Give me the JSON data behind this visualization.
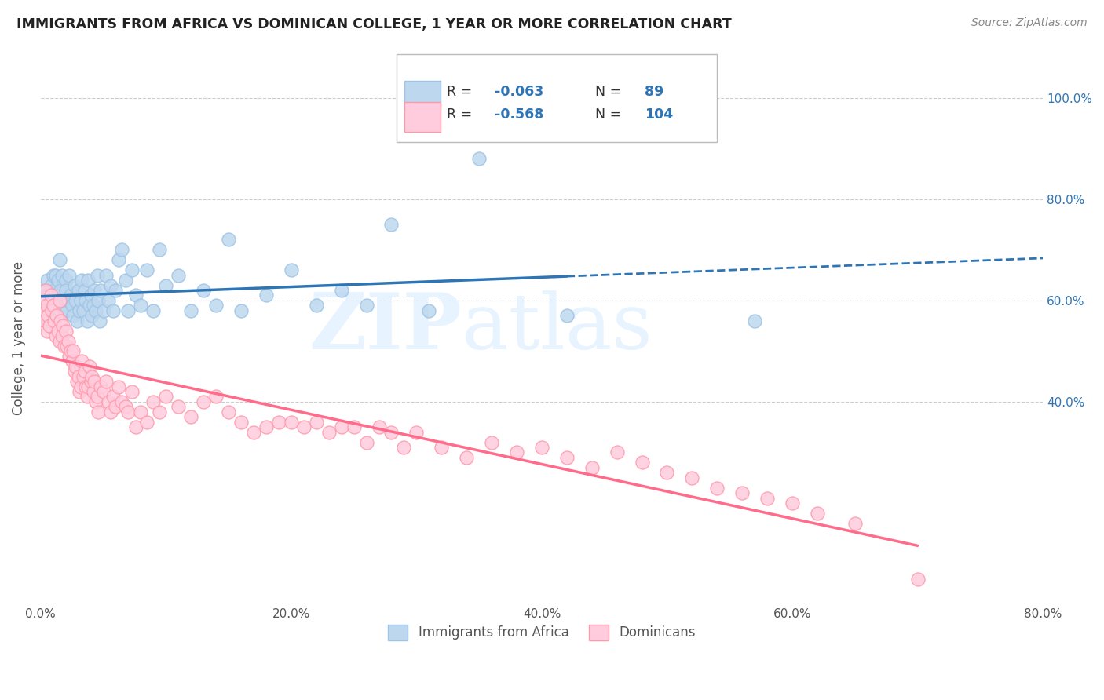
{
  "title": "IMMIGRANTS FROM AFRICA VS DOMINICAN COLLEGE, 1 YEAR OR MORE CORRELATION CHART",
  "source_text": "Source: ZipAtlas.com",
  "ylabel": "College, 1 year or more",
  "xlim": [
    0.0,
    0.8
  ],
  "ylim": [
    0.0,
    1.05
  ],
  "xtick_labels": [
    "0.0%",
    "",
    "20.0%",
    "",
    "40.0%",
    "",
    "60.0%",
    "",
    "80.0%"
  ],
  "xtick_vals": [
    0.0,
    0.1,
    0.2,
    0.3,
    0.4,
    0.5,
    0.6,
    0.7,
    0.8
  ],
  "ytick_vals": [
    0.4,
    0.6,
    0.8,
    1.0
  ],
  "ytick_right_labels": [
    "40.0%",
    "60.0%",
    "80.0%",
    "100.0%"
  ],
  "blue_R": -0.063,
  "blue_N": 89,
  "pink_R": -0.568,
  "pink_N": 104,
  "blue_fill_color": "#BDD7EE",
  "pink_fill_color": "#FFCCDD",
  "blue_edge_color": "#9DC3E6",
  "pink_edge_color": "#FF99AA",
  "blue_line_color": "#2E75B6",
  "pink_line_color": "#FF6B8A",
  "label_color_blue": "#2E75B6",
  "label_color_pink": "#FF6B8A",
  "watermark_zip": "ZIP",
  "watermark_atlas": "atlas",
  "watermark_color": "#DDEEFF",
  "legend_label_blue": "Immigrants from Africa",
  "legend_label_pink": "Dominicans",
  "legend_text_color": "#555555",
  "legend_value_color": "#2E75B6",
  "blue_scatter_x": [
    0.002,
    0.003,
    0.004,
    0.005,
    0.005,
    0.006,
    0.007,
    0.008,
    0.008,
    0.009,
    0.01,
    0.01,
    0.011,
    0.012,
    0.012,
    0.013,
    0.013,
    0.014,
    0.014,
    0.015,
    0.015,
    0.016,
    0.016,
    0.017,
    0.018,
    0.019,
    0.02,
    0.02,
    0.021,
    0.022,
    0.023,
    0.024,
    0.025,
    0.026,
    0.027,
    0.028,
    0.029,
    0.03,
    0.031,
    0.032,
    0.033,
    0.034,
    0.035,
    0.036,
    0.037,
    0.038,
    0.039,
    0.04,
    0.041,
    0.042,
    0.043,
    0.044,
    0.045,
    0.046,
    0.047,
    0.048,
    0.05,
    0.052,
    0.054,
    0.056,
    0.058,
    0.06,
    0.062,
    0.065,
    0.068,
    0.07,
    0.073,
    0.076,
    0.08,
    0.085,
    0.09,
    0.095,
    0.1,
    0.11,
    0.12,
    0.13,
    0.14,
    0.15,
    0.16,
    0.18,
    0.2,
    0.22,
    0.24,
    0.26,
    0.28,
    0.31,
    0.35,
    0.42,
    0.57
  ],
  "blue_scatter_y": [
    0.62,
    0.6,
    0.58,
    0.64,
    0.56,
    0.61,
    0.59,
    0.57,
    0.63,
    0.6,
    0.65,
    0.58,
    0.62,
    0.59,
    0.65,
    0.61,
    0.57,
    0.64,
    0.6,
    0.68,
    0.56,
    0.62,
    0.59,
    0.65,
    0.6,
    0.58,
    0.64,
    0.62,
    0.58,
    0.6,
    0.65,
    0.61,
    0.59,
    0.57,
    0.63,
    0.6,
    0.56,
    0.62,
    0.58,
    0.6,
    0.64,
    0.58,
    0.62,
    0.6,
    0.56,
    0.64,
    0.59,
    0.61,
    0.57,
    0.59,
    0.62,
    0.58,
    0.65,
    0.6,
    0.56,
    0.62,
    0.58,
    0.65,
    0.6,
    0.63,
    0.58,
    0.62,
    0.68,
    0.7,
    0.64,
    0.58,
    0.66,
    0.61,
    0.59,
    0.66,
    0.58,
    0.7,
    0.63,
    0.65,
    0.58,
    0.62,
    0.59,
    0.72,
    0.58,
    0.61,
    0.66,
    0.59,
    0.62,
    0.59,
    0.75,
    0.58,
    0.88,
    0.57,
    0.56
  ],
  "pink_scatter_x": [
    0.001,
    0.002,
    0.003,
    0.004,
    0.005,
    0.005,
    0.006,
    0.007,
    0.008,
    0.009,
    0.01,
    0.011,
    0.012,
    0.013,
    0.014,
    0.015,
    0.015,
    0.016,
    0.017,
    0.018,
    0.019,
    0.02,
    0.021,
    0.022,
    0.023,
    0.024,
    0.025,
    0.026,
    0.027,
    0.028,
    0.029,
    0.03,
    0.031,
    0.032,
    0.033,
    0.034,
    0.035,
    0.036,
    0.037,
    0.038,
    0.039,
    0.04,
    0.041,
    0.042,
    0.043,
    0.044,
    0.045,
    0.046,
    0.048,
    0.05,
    0.052,
    0.054,
    0.056,
    0.058,
    0.06,
    0.062,
    0.065,
    0.068,
    0.07,
    0.073,
    0.076,
    0.08,
    0.085,
    0.09,
    0.095,
    0.1,
    0.11,
    0.12,
    0.13,
    0.14,
    0.15,
    0.16,
    0.17,
    0.18,
    0.19,
    0.2,
    0.21,
    0.22,
    0.23,
    0.24,
    0.25,
    0.26,
    0.27,
    0.28,
    0.29,
    0.3,
    0.32,
    0.34,
    0.36,
    0.38,
    0.4,
    0.42,
    0.44,
    0.46,
    0.48,
    0.5,
    0.52,
    0.54,
    0.56,
    0.58,
    0.6,
    0.62,
    0.65,
    0.7
  ],
  "pink_scatter_y": [
    0.6,
    0.58,
    0.56,
    0.62,
    0.54,
    0.59,
    0.57,
    0.55,
    0.61,
    0.58,
    0.59,
    0.56,
    0.53,
    0.57,
    0.54,
    0.6,
    0.52,
    0.56,
    0.53,
    0.55,
    0.51,
    0.54,
    0.51,
    0.52,
    0.49,
    0.5,
    0.48,
    0.5,
    0.46,
    0.47,
    0.44,
    0.45,
    0.42,
    0.43,
    0.48,
    0.45,
    0.46,
    0.43,
    0.41,
    0.43,
    0.47,
    0.44,
    0.45,
    0.42,
    0.44,
    0.4,
    0.41,
    0.38,
    0.43,
    0.42,
    0.44,
    0.4,
    0.38,
    0.41,
    0.39,
    0.43,
    0.4,
    0.39,
    0.38,
    0.42,
    0.35,
    0.38,
    0.36,
    0.4,
    0.38,
    0.41,
    0.39,
    0.37,
    0.4,
    0.41,
    0.38,
    0.36,
    0.34,
    0.35,
    0.36,
    0.36,
    0.35,
    0.36,
    0.34,
    0.35,
    0.35,
    0.32,
    0.35,
    0.34,
    0.31,
    0.34,
    0.31,
    0.29,
    0.32,
    0.3,
    0.31,
    0.29,
    0.27,
    0.3,
    0.28,
    0.26,
    0.25,
    0.23,
    0.22,
    0.21,
    0.2,
    0.18,
    0.16,
    0.05
  ]
}
